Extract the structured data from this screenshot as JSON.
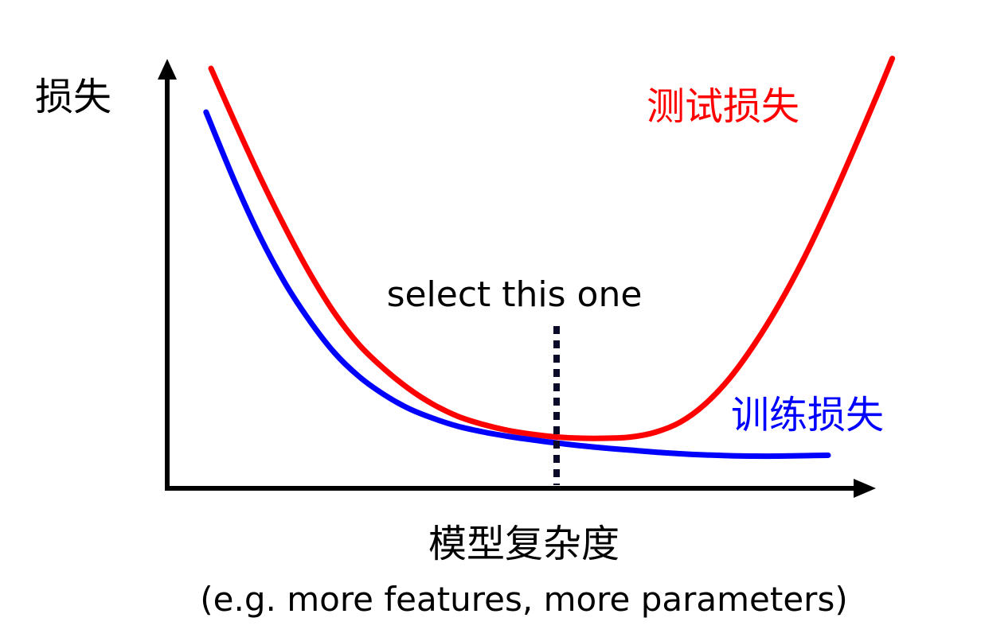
{
  "chart_data": {
    "type": "line",
    "title": "",
    "ylabel": "损失",
    "xlabel": "模型复杂度",
    "xlabel_note": "(e.g. more features, more parameters)",
    "grid": false,
    "legend": "inline labels at curve ends",
    "series": [
      {
        "name": "测试损失",
        "color": "#ff0000",
        "points": [
          [
            0.0,
            10.0
          ],
          [
            0.5,
            8.6
          ],
          [
            1.0,
            7.25
          ],
          [
            1.5,
            6.0
          ],
          [
            2.0,
            4.85
          ],
          [
            2.5,
            3.85
          ],
          [
            3.0,
            3.05
          ],
          [
            3.5,
            2.45
          ],
          [
            4.0,
            1.95
          ],
          [
            4.5,
            1.55
          ],
          [
            5.0,
            1.25
          ],
          [
            5.5,
            1.05
          ],
          [
            6.0,
            0.9
          ],
          [
            6.5,
            0.8
          ],
          [
            7.0,
            0.73
          ],
          [
            7.5,
            0.7
          ],
          [
            8.0,
            0.7
          ],
          [
            8.5,
            0.73
          ],
          [
            9.0,
            0.85
          ],
          [
            9.5,
            1.1
          ],
          [
            10.0,
            1.55
          ],
          [
            10.5,
            2.2
          ],
          [
            11.0,
            3.05
          ],
          [
            11.5,
            4.05
          ],
          [
            12.0,
            5.2
          ],
          [
            12.5,
            6.5
          ],
          [
            13.0,
            7.9
          ],
          [
            13.5,
            9.35
          ],
          [
            13.8,
            10.25
          ]
        ]
      },
      {
        "name": "训练损失",
        "color": "#0000ff",
        "points": [
          [
            -0.1,
            8.9
          ],
          [
            0.5,
            7.1
          ],
          [
            1.0,
            5.75
          ],
          [
            1.5,
            4.6
          ],
          [
            2.0,
            3.65
          ],
          [
            2.5,
            2.85
          ],
          [
            3.0,
            2.25
          ],
          [
            3.5,
            1.8
          ],
          [
            4.0,
            1.45
          ],
          [
            4.5,
            1.2
          ],
          [
            5.0,
            1.0
          ],
          [
            5.5,
            0.86
          ],
          [
            6.0,
            0.75
          ],
          [
            6.5,
            0.66
          ],
          [
            7.0,
            0.58
          ],
          [
            7.5,
            0.51
          ],
          [
            8.0,
            0.45
          ],
          [
            8.5,
            0.4
          ],
          [
            9.0,
            0.35
          ],
          [
            9.5,
            0.31
          ],
          [
            10.0,
            0.28
          ],
          [
            10.5,
            0.26
          ],
          [
            11.0,
            0.25
          ],
          [
            11.5,
            0.25
          ],
          [
            12.0,
            0.26
          ],
          [
            12.5,
            0.27
          ]
        ]
      }
    ],
    "annotation": {
      "text": "select this one",
      "x": 7.0
    },
    "axis_color": "#000000",
    "annotation_line_color": "#0a0a28"
  }
}
